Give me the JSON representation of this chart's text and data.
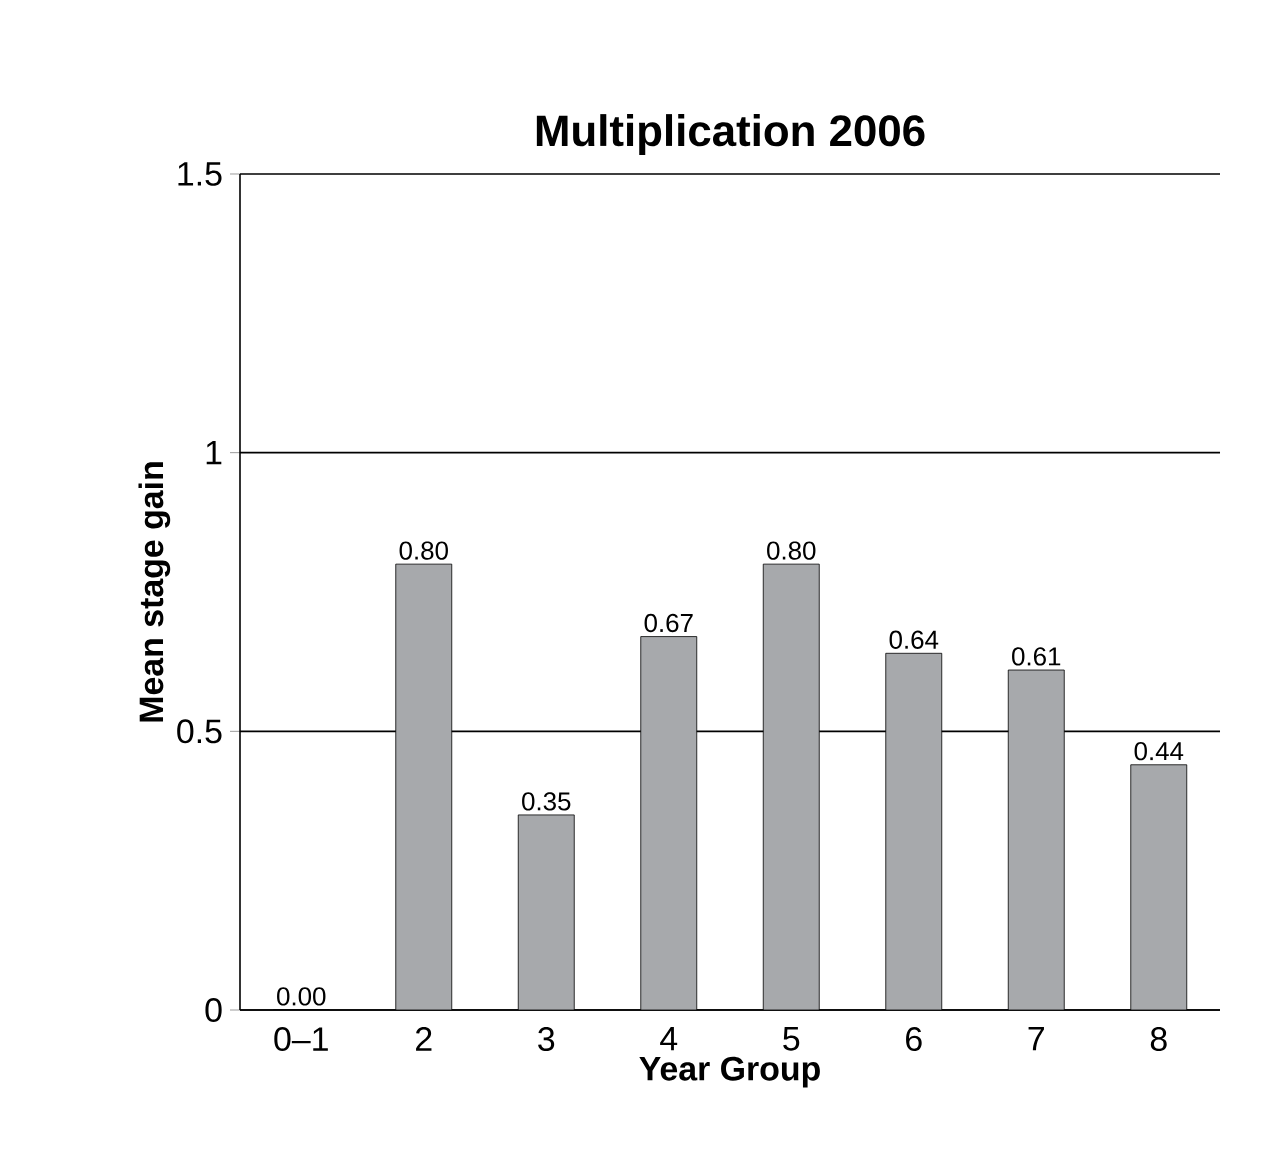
{
  "chart_data": {
    "type": "bar",
    "title": "Multiplication 2006",
    "xlabel": "Year Group",
    "ylabel": "Mean stage gain",
    "categories": [
      "0–1",
      "2",
      "3",
      "4",
      "5",
      "6",
      "7",
      "8"
    ],
    "values": [
      0.0,
      0.8,
      0.35,
      0.67,
      0.8,
      0.64,
      0.61,
      0.44
    ],
    "value_labels": [
      "0.00",
      "0.80",
      "0.35",
      "0.67",
      "0.80",
      "0.64",
      "0.61",
      "0.44"
    ],
    "color": "#a7a9ac",
    "ylim": [
      0,
      1.5
    ],
    "yticks": [
      0,
      0.5,
      1,
      1.5
    ],
    "grid": "y"
  }
}
